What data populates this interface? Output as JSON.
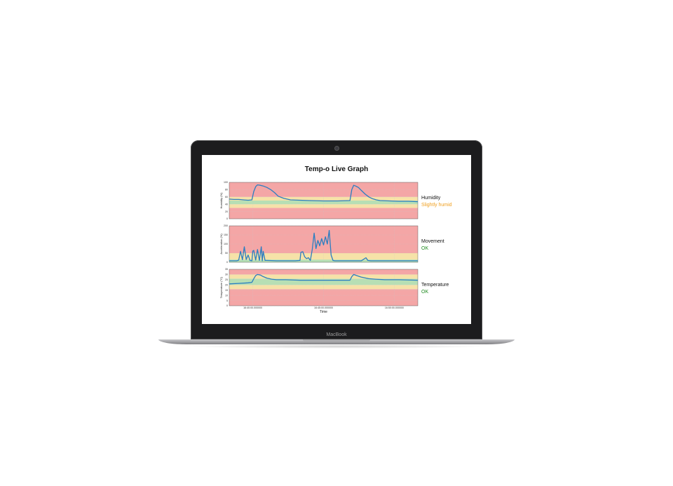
{
  "device": {
    "brand": "MacBook"
  },
  "chart_data": {
    "type": "line",
    "title": "Temp-o Live Graph",
    "xlabel": "Time",
    "x_ticks": [
      "16:40:00.000000",
      "16:45:00.000000",
      "16:50:00.000000"
    ],
    "colors": {
      "line": "#2b7ec1",
      "red": "#f4a6a6",
      "yellow": "#f6e2a8",
      "green": "#b7dfb4",
      "grid": "#c8c8c8"
    },
    "subplots": [
      {
        "ylabel": "Humidity (%)",
        "ylim": [
          0,
          100
        ],
        "yticks": [
          "0",
          "20",
          "40",
          "60",
          "80",
          "100"
        ],
        "status_label": "Humidity",
        "status_value": "Slightly humid",
        "status_color": "#f0a020",
        "bands": [
          {
            "from": 0,
            "to": 30,
            "zone": "red"
          },
          {
            "from": 30,
            "to": 40,
            "zone": "yellow"
          },
          {
            "from": 40,
            "to": 50,
            "zone": "green"
          },
          {
            "from": 50,
            "to": 60,
            "zone": "yellow"
          },
          {
            "from": 60,
            "to": 100,
            "zone": "red"
          }
        ],
        "x": [
          0,
          5,
          10,
          15,
          20,
          24,
          26,
          28,
          30,
          33,
          36,
          40,
          44,
          48,
          52,
          58,
          65,
          75,
          85,
          100,
          115,
          128,
          130,
          132,
          134,
          137,
          140,
          144,
          148,
          152,
          156,
          160,
          170,
          180,
          190,
          200
        ],
        "y": [
          54,
          53,
          53,
          52,
          51,
          52,
          75,
          88,
          93,
          92,
          90,
          86,
          80,
          72,
          62,
          56,
          52,
          51,
          50,
          49,
          49,
          50,
          80,
          92,
          90,
          86,
          78,
          68,
          60,
          55,
          52,
          50,
          49,
          48,
          48,
          47
        ]
      },
      {
        "ylabel": "Acceleration (%)",
        "ylim": [
          0,
          200
        ],
        "yticks": [
          "0",
          "50",
          "100",
          "150",
          "200"
        ],
        "status_label": "Movement",
        "status_value": "OK",
        "status_color": "#1e8a1e",
        "bands": [
          {
            "from": 0,
            "to": 15,
            "zone": "green"
          },
          {
            "from": 15,
            "to": 50,
            "zone": "yellow"
          },
          {
            "from": 50,
            "to": 200,
            "zone": "red"
          }
        ],
        "x": [
          0,
          8,
          10,
          12,
          14,
          16,
          18,
          20,
          22,
          24,
          25,
          26,
          28,
          30,
          32,
          34,
          35,
          36,
          38,
          40,
          50,
          60,
          70,
          75,
          76,
          78,
          80,
          82,
          84,
          86,
          88,
          90,
          92,
          94,
          96,
          98,
          100,
          102,
          104,
          106,
          108,
          110,
          112,
          120,
          130,
          140,
          145,
          147,
          150,
          160,
          170,
          180,
          190,
          200
        ],
        "y": [
          8,
          8,
          12,
          60,
          14,
          85,
          15,
          40,
          10,
          8,
          62,
          65,
          12,
          70,
          10,
          85,
          8,
          60,
          10,
          10,
          8,
          8,
          8,
          10,
          55,
          58,
          30,
          20,
          25,
          10,
          70,
          160,
          75,
          120,
          90,
          130,
          95,
          140,
          100,
          175,
          40,
          10,
          8,
          8,
          8,
          8,
          25,
          10,
          8,
          8,
          8,
          8,
          8,
          8
        ]
      },
      {
        "ylabel": "Temperature (°C)",
        "ylim": [
          0,
          35
        ],
        "yticks": [
          "0",
          "5",
          "10",
          "15",
          "20",
          "25",
          "30",
          "35"
        ],
        "status_label": "Temperature",
        "status_value": "OK",
        "status_color": "#1e8a1e",
        "bands": [
          {
            "from": 0,
            "to": 16,
            "zone": "red"
          },
          {
            "from": 16,
            "to": 20,
            "zone": "yellow"
          },
          {
            "from": 20,
            "to": 26,
            "zone": "green"
          },
          {
            "from": 26,
            "to": 30,
            "zone": "yellow"
          },
          {
            "from": 30,
            "to": 35,
            "zone": "red"
          }
        ],
        "x": [
          0,
          10,
          20,
          24,
          26,
          28,
          30,
          33,
          36,
          40,
          45,
          50,
          60,
          75,
          90,
          110,
          128,
          130,
          132,
          135,
          140,
          148,
          155,
          165,
          180,
          200
        ],
        "y": [
          21,
          21.5,
          22,
          22.5,
          26,
          29,
          30,
          29.5,
          28,
          26.5,
          25.5,
          25,
          25,
          24.5,
          24.5,
          24.5,
          24.5,
          28,
          30,
          29,
          27.5,
          26,
          25.5,
          25,
          25,
          24.5
        ]
      }
    ]
  }
}
